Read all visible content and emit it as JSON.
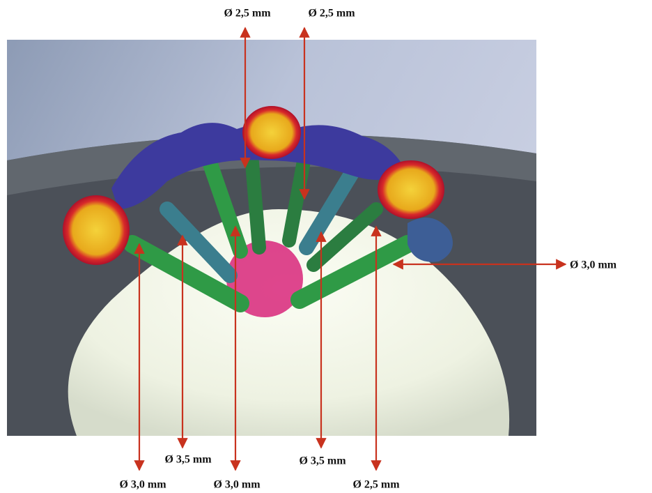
{
  "labels": [
    "Ø 2,5 mm",
    "Ø 2,5 mm",
    "Ø 3,0 mm",
    "Ø 3,5 mm",
    "Ø 3,5 mm",
    "Ø 3,0 mm",
    "Ø 3,0 mm",
    "Ø 2,5 mm"
  ]
}
